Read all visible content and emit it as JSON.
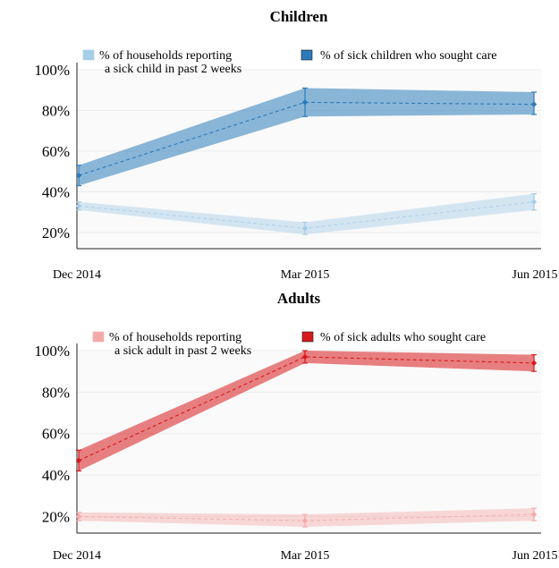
{
  "chart_data": [
    {
      "type": "line",
      "title": "Children",
      "x": [
        "Dec 2014",
        "Mar 2015",
        "Jun 2015"
      ],
      "yticks": [
        "20%",
        "40%",
        "60%",
        "80%",
        "100%"
      ],
      "ylim": [
        12,
        100
      ],
      "grid": true,
      "legend_position": "top",
      "series": [
        {
          "name": "% of households reporting\na sick child in past 2 weeks",
          "values": [
            33,
            22,
            35
          ],
          "lower": [
            31,
            19,
            31
          ],
          "upper": [
            35,
            25,
            39
          ],
          "color": "#a6cde8"
        },
        {
          "name": "% of sick children who sought care",
          "values": [
            48,
            84,
            83
          ],
          "lower": [
            43,
            77,
            78
          ],
          "upper": [
            53,
            91,
            89
          ],
          "color": "#2b7bba"
        }
      ]
    },
    {
      "type": "line",
      "title": "Adults",
      "x": [
        "Dec 2014",
        "Mar 2015",
        "Jun 2015"
      ],
      "yticks": [
        "20%",
        "40%",
        "60%",
        "80%",
        "100%"
      ],
      "ylim": [
        12,
        100
      ],
      "grid": true,
      "legend_position": "top",
      "series": [
        {
          "name": "% of households reporting\na sick adult in past 2 weeks",
          "values": [
            20,
            18,
            21
          ],
          "lower": [
            18,
            15,
            18
          ],
          "upper": [
            22,
            21,
            24
          ],
          "color": "#f5aaaa"
        },
        {
          "name": "% of sick adults who sought care",
          "values": [
            47,
            97,
            94
          ],
          "lower": [
            42,
            94,
            90
          ],
          "upper": [
            52,
            100,
            98
          ],
          "color": "#d7191c"
        }
      ]
    }
  ]
}
